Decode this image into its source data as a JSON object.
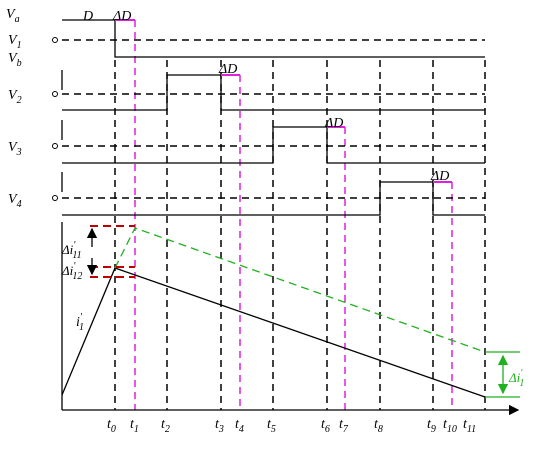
{
  "signal_labels": [
    {
      "base": "V",
      "sub": "a"
    },
    {
      "base": "V",
      "sub": "1"
    },
    {
      "base": "V",
      "sub": "b"
    },
    {
      "base": "V",
      "sub": "2"
    },
    {
      "base": "V",
      "sub": "3"
    },
    {
      "base": "V",
      "sub": "4"
    }
  ],
  "d_label": "D",
  "delta_d_labels": [
    "ΔD",
    "ΔD",
    "ΔD",
    "ΔD"
  ],
  "time_labels": [
    {
      "base": "t",
      "sub": "0"
    },
    {
      "base": "t",
      "sub": "1"
    },
    {
      "base": "t",
      "sub": "2"
    },
    {
      "base": "t",
      "sub": "3"
    },
    {
      "base": "t",
      "sub": "4"
    },
    {
      "base": "t",
      "sub": "5"
    },
    {
      "base": "t",
      "sub": "6"
    },
    {
      "base": "t",
      "sub": "7"
    },
    {
      "base": "t",
      "sub": "8"
    },
    {
      "base": "t",
      "sub": "9"
    },
    {
      "base": "t",
      "sub": "10"
    },
    {
      "base": "t",
      "sub": "11"
    }
  ],
  "current_labels": [
    {
      "base": "Δi",
      "sup": "'",
      "sub": "11"
    },
    {
      "base": "Δi",
      "sup": "'",
      "sub": "12"
    },
    {
      "base": "i",
      "sup": "'",
      "sub": "1"
    },
    {
      "base": "Δi",
      "sup": "'",
      "sub": "1"
    }
  ]
}
